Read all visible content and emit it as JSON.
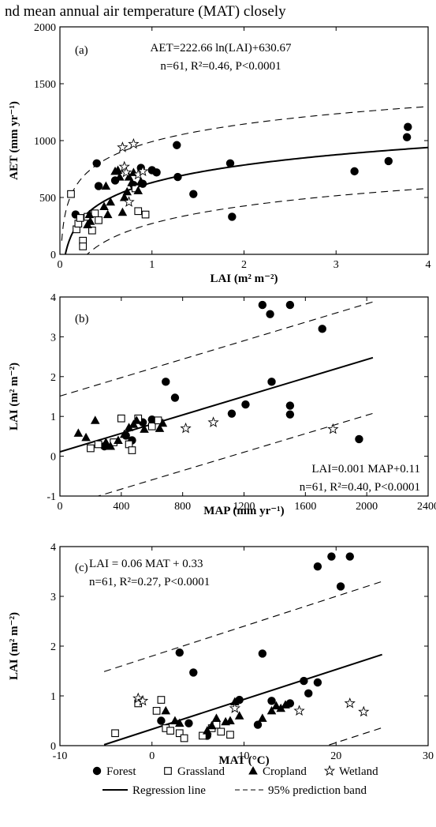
{
  "top_text": "nd mean annual air temperature (MAT) closely",
  "chart_data": [
    {
      "panel": "(a)",
      "type": "scatter",
      "xlabel": "LAI (m² m⁻²)",
      "ylabel": "AET (mm yr⁻¹)",
      "xlim": [
        0,
        4
      ],
      "ylim": [
        0,
        2000
      ],
      "xticks": [
        0,
        1,
        2,
        3,
        4
      ],
      "yticks": [
        0,
        500,
        1000,
        1500,
        2000
      ],
      "equation": "AET=222.66 ln(LAI)+630.67",
      "stats": [
        "n=61, R²=0.46, P<0.0001"
      ],
      "regression": {
        "form": "log",
        "a": 222.66,
        "b": 630.67
      },
      "band_offset": 360,
      "series": [
        {
          "name": "Forest",
          "marker": "filled-circle",
          "points": [
            [
              0.17,
              350
            ],
            [
              0.4,
              800
            ],
            [
              0.42,
              600
            ],
            [
              0.6,
              650
            ],
            [
              0.8,
              610
            ],
            [
              0.88,
              760
            ],
            [
              0.9,
              620
            ],
            [
              1.0,
              740
            ],
            [
              1.05,
              720
            ],
            [
              1.27,
              960
            ],
            [
              1.28,
              680
            ],
            [
              1.45,
              530
            ],
            [
              1.85,
              800
            ],
            [
              1.87,
              330
            ],
            [
              3.2,
              730
            ],
            [
              3.57,
              820
            ],
            [
              3.77,
              1030
            ],
            [
              3.78,
              1120
            ]
          ]
        },
        {
          "name": "Grassland",
          "marker": "open-square",
          "points": [
            [
              0.12,
              530
            ],
            [
              0.18,
              220
            ],
            [
              0.2,
              270
            ],
            [
              0.22,
              320
            ],
            [
              0.25,
              120
            ],
            [
              0.25,
              70
            ],
            [
              0.3,
              330
            ],
            [
              0.35,
              210
            ],
            [
              0.38,
              360
            ],
            [
              0.42,
              300
            ],
            [
              0.82,
              580
            ],
            [
              0.85,
              380
            ],
            [
              0.93,
              350
            ]
          ]
        },
        {
          "name": "Cropland",
          "marker": "filled-triangle",
          "points": [
            [
              0.3,
              260
            ],
            [
              0.32,
              350
            ],
            [
              0.33,
              290
            ],
            [
              0.48,
              420
            ],
            [
              0.5,
              600
            ],
            [
              0.52,
              350
            ],
            [
              0.55,
              460
            ],
            [
              0.6,
              730
            ],
            [
              0.63,
              740
            ],
            [
              0.65,
              680
            ],
            [
              0.68,
              370
            ],
            [
              0.7,
              500
            ],
            [
              0.73,
              550
            ],
            [
              0.75,
              680
            ],
            [
              0.78,
              630
            ],
            [
              0.8,
              720
            ],
            [
              0.85,
              560
            ],
            [
              0.88,
              640
            ]
          ]
        },
        {
          "name": "Wetland",
          "marker": "open-star",
          "points": [
            [
              0.68,
              940
            ],
            [
              0.7,
              770
            ],
            [
              0.72,
              720
            ],
            [
              0.75,
              460
            ],
            [
              0.8,
              970
            ],
            [
              0.85,
              700
            ],
            [
              0.9,
              730
            ]
          ]
        }
      ]
    },
    {
      "panel": "(b)",
      "type": "scatter",
      "xlabel": "MAP (mm  yr⁻¹)",
      "ylabel": "LAI (m² m⁻²)",
      "xlim": [
        0,
        2400
      ],
      "ylim": [
        -1,
        4
      ],
      "xticks": [
        0,
        400,
        800,
        1200,
        1600,
        2000,
        2400
      ],
      "yticks": [
        -1,
        0,
        1,
        2,
        3,
        4
      ],
      "equation": "LAI=0.001 MAP+0.11",
      "stats": [
        "n=61, R²=0.40, P<0.0001"
      ],
      "regression": {
        "form": "linear",
        "slope": 0.00116,
        "intercept": 0.11,
        "xrange": [
          0,
          2040
        ]
      },
      "band_offset": 1.4,
      "series": [
        {
          "name": "Forest",
          "marker": "filled-circle",
          "points": [
            [
              290,
              0.25
            ],
            [
              430,
              0.52
            ],
            [
              470,
              0.4
            ],
            [
              540,
              0.85
            ],
            [
              600,
              0.92
            ],
            [
              690,
              1.87
            ],
            [
              750,
              1.47
            ],
            [
              1120,
              1.07
            ],
            [
              1210,
              1.3
            ],
            [
              1320,
              3.8
            ],
            [
              1370,
              3.57
            ],
            [
              1380,
              1.87
            ],
            [
              1500,
              3.8
            ],
            [
              1500,
              1.27
            ],
            [
              1500,
              1.05
            ],
            [
              1710,
              3.2
            ],
            [
              1950,
              0.43
            ]
          ]
        },
        {
          "name": "Grassland",
          "marker": "open-square",
          "points": [
            [
              200,
              0.2
            ],
            [
              250,
              0.3
            ],
            [
              350,
              0.35
            ],
            [
              400,
              0.95
            ],
            [
              450,
              0.3
            ],
            [
              470,
              0.15
            ],
            [
              510,
              0.95
            ],
            [
              600,
              0.75
            ],
            [
              640,
              0.9
            ]
          ]
        },
        {
          "name": "Cropland",
          "marker": "filled-triangle",
          "points": [
            [
              120,
              0.58
            ],
            [
              170,
              0.47
            ],
            [
              230,
              0.9
            ],
            [
              300,
              0.35
            ],
            [
              330,
              0.25
            ],
            [
              380,
              0.4
            ],
            [
              420,
              0.55
            ],
            [
              450,
              0.72
            ],
            [
              480,
              0.8
            ],
            [
              500,
              0.9
            ],
            [
              550,
              0.68
            ],
            [
              650,
              0.7
            ],
            [
              670,
              0.83
            ]
          ]
        },
        {
          "name": "Wetland",
          "marker": "open-star",
          "points": [
            [
              820,
              0.7
            ],
            [
              1000,
              0.85
            ],
            [
              1780,
              0.68
            ]
          ]
        }
      ]
    },
    {
      "panel": "(c)",
      "type": "scatter",
      "xlabel": "MAT (°C)",
      "ylabel": "LAI (m² m⁻²)",
      "xlim": [
        -10,
        30
      ],
      "ylim": [
        0,
        4
      ],
      "xticks": [
        -10,
        0,
        10,
        20,
        30
      ],
      "yticks": [
        0,
        1,
        2,
        3,
        4
      ],
      "equation": "LAI = 0.06 MAT + 0.33",
      "stats": [
        "n=61, R²=0.27, P<0.0001"
      ],
      "regression": {
        "form": "linear",
        "slope": 0.06,
        "intercept": 0.33,
        "xrange": [
          -5.2,
          25
        ]
      },
      "band_offset": 1.47,
      "series": [
        {
          "name": "Forest",
          "marker": "filled-circle",
          "points": [
            [
              1,
              0.5
            ],
            [
              3,
              1.87
            ],
            [
              4,
              0.45
            ],
            [
              4.5,
              1.47
            ],
            [
              6,
              0.2
            ],
            [
              9.5,
              0.92
            ],
            [
              11.5,
              0.42
            ],
            [
              12,
              1.85
            ],
            [
              13,
              0.9
            ],
            [
              15,
              0.85
            ],
            [
              16.5,
              1.3
            ],
            [
              17,
              1.05
            ],
            [
              18,
              1.27
            ],
            [
              18,
              3.6
            ],
            [
              19.5,
              3.8
            ],
            [
              20.5,
              3.2
            ],
            [
              21.5,
              3.8
            ]
          ]
        },
        {
          "name": "Grassland",
          "marker": "open-square",
          "points": [
            [
              -4,
              0.25
            ],
            [
              -1.5,
              0.85
            ],
            [
              0.5,
              0.7
            ],
            [
              1,
              0.92
            ],
            [
              1.5,
              0.35
            ],
            [
              2,
              0.3
            ],
            [
              3,
              0.25
            ],
            [
              3.5,
              0.15
            ],
            [
              5.5,
              0.2
            ],
            [
              6.5,
              0.35
            ],
            [
              7,
              0.42
            ],
            [
              7.5,
              0.28
            ],
            [
              8.5,
              0.22
            ]
          ]
        },
        {
          "name": "Cropland",
          "marker": "filled-triangle",
          "points": [
            [
              1.5,
              0.7
            ],
            [
              2.5,
              0.5
            ],
            [
              3,
              0.45
            ],
            [
              6,
              0.3
            ],
            [
              6.5,
              0.4
            ],
            [
              7,
              0.55
            ],
            [
              8,
              0.48
            ],
            [
              8.5,
              0.5
            ],
            [
              9,
              0.88
            ],
            [
              9.5,
              0.6
            ],
            [
              12,
              0.55
            ],
            [
              13,
              0.7
            ],
            [
              13.5,
              0.8
            ],
            [
              14,
              0.75
            ],
            [
              14.5,
              0.82
            ]
          ]
        },
        {
          "name": "Wetland",
          "marker": "open-star",
          "points": [
            [
              -1.5,
              0.95
            ],
            [
              -1,
              0.9
            ],
            [
              9,
              0.75
            ],
            [
              16,
              0.7
            ],
            [
              21.5,
              0.85
            ],
            [
              23,
              0.68
            ]
          ]
        }
      ]
    }
  ],
  "legend": {
    "items": [
      {
        "label": "Forest",
        "marker": "filled-circle"
      },
      {
        "label": "Grassland",
        "marker": "open-square"
      },
      {
        "label": "Cropland",
        "marker": "filled-triangle"
      },
      {
        "label": "Wetland",
        "marker": "open-star"
      }
    ],
    "lines": [
      {
        "label": "Regression line",
        "style": "solid"
      },
      {
        "label": "95% prediction band",
        "style": "dashed"
      }
    ]
  }
}
